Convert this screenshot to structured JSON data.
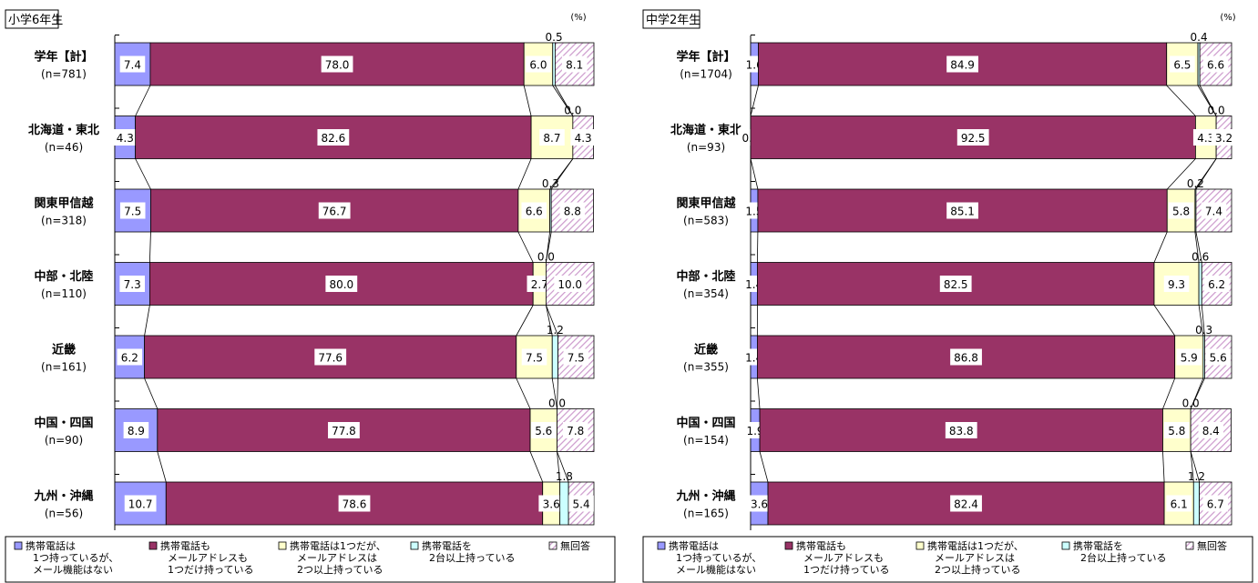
{
  "colors": {
    "s1": "#9999ff",
    "s2": "#993366",
    "s3": "#ffffcc",
    "s4": "#ccffff",
    "s5_hatch": "#cc99cc",
    "border": "#000000"
  },
  "chart_data": [
    {
      "type": "bar",
      "orientation": "horizontal",
      "stacked": "100%",
      "title": "小学6年生",
      "unit": "(%)",
      "categories": [
        "学年【計】",
        "北海道・東北",
        "関東甲信越",
        "中部・北陸",
        "近畿",
        "中国・四国",
        "九州・沖縄"
      ],
      "n_labels": [
        "(n=781)",
        "(n=46)",
        "(n=318)",
        "(n=110)",
        "(n=161)",
        "(n=90)",
        "(n=56)"
      ],
      "series": [
        {
          "name": "携帯電話は1つ持っているが、メール機能はない",
          "values": [
            7.4,
            4.3,
            7.5,
            7.3,
            6.2,
            8.9,
            10.7
          ],
          "labels": [
            "7.4",
            "4.3",
            "7.5",
            "7.3",
            "6.2",
            "8.9",
            "10.7"
          ]
        },
        {
          "name": "携帯電話もメールアドレスも1つだけ持っている",
          "values": [
            78.0,
            82.6,
            76.7,
            80.0,
            77.6,
            77.8,
            78.6
          ],
          "labels": [
            "78.0",
            "82.6",
            "76.7",
            "80.0",
            "77.6",
            "77.8",
            "78.6"
          ]
        },
        {
          "name": "携帯電話は1つだが、メールアドレスは2つ以上持っている",
          "values": [
            6.0,
            8.7,
            6.6,
            2.7,
            7.5,
            5.6,
            3.6
          ],
          "labels": [
            "6.0",
            "8.7",
            "6.6",
            "2.7",
            "7.5",
            "5.6",
            "3.6"
          ]
        },
        {
          "name": "携帯電話を2台以上持っている",
          "values": [
            0.5,
            0.0,
            0.3,
            0.0,
            1.2,
            0.0,
            1.8
          ],
          "labels": [
            "0.5",
            "0.0",
            "0.3",
            "0.0",
            "1.2",
            "0.0",
            "1.8"
          ]
        },
        {
          "name": "無回答",
          "values": [
            8.1,
            4.3,
            8.8,
            10.0,
            7.5,
            7.8,
            5.4
          ],
          "labels": [
            "8.1",
            "4.3",
            "8.8",
            "10.0",
            "7.5",
            "7.8",
            "5.4"
          ]
        }
      ],
      "legend": {
        "position": "bottom",
        "items": [
          {
            "lines": [
              "携帯電話は",
              "1つ持っているが、",
              "メール機能はない"
            ]
          },
          {
            "lines": [
              "携帯電話も",
              "メールアドレスも",
              "1つだけ持っている"
            ]
          },
          {
            "lines": [
              "携帯電話は1つだが、",
              "メールアドレスは",
              "2つ以上持っている"
            ]
          },
          {
            "lines": [
              "携帯電話を",
              "2台以上持っている"
            ]
          },
          {
            "lines": [
              "無回答"
            ]
          }
        ]
      }
    },
    {
      "type": "bar",
      "orientation": "horizontal",
      "stacked": "100%",
      "title": "中学2年生",
      "unit": "(%)",
      "categories": [
        "学年【計】",
        "北海道・東北",
        "関東甲信越",
        "中部・北陸",
        "近畿",
        "中国・四国",
        "九州・沖縄"
      ],
      "n_labels": [
        "(n=1704)",
        "(n=93)",
        "(n=583)",
        "(n=354)",
        "(n=355)",
        "(n=154)",
        "(n=165)"
      ],
      "series": [
        {
          "name": "携帯電話は1つ持っているが、メール機能はない",
          "values": [
            1.6,
            0.0,
            1.5,
            1.4,
            1.4,
            1.9,
            3.6
          ],
          "labels": [
            "1.6",
            "0.0",
            "1.5",
            "1.4",
            "1.4",
            "1.9",
            "3.6"
          ]
        },
        {
          "name": "携帯電話もメールアドレスも1つだけ持っている",
          "values": [
            84.9,
            92.5,
            85.1,
            82.5,
            86.8,
            83.8,
            82.4
          ],
          "labels": [
            "84.9",
            "92.5",
            "85.1",
            "82.5",
            "86.8",
            "83.8",
            "82.4"
          ]
        },
        {
          "name": "携帯電話は1つだが、メールアドレスは2つ以上持っている",
          "values": [
            6.5,
            4.3,
            5.8,
            9.3,
            5.9,
            5.8,
            6.1
          ],
          "labels": [
            "6.5",
            "4.3",
            "5.8",
            "9.3",
            "5.9",
            "5.8",
            "6.1"
          ]
        },
        {
          "name": "携帯電話を2台以上持っている",
          "values": [
            0.4,
            0.0,
            0.2,
            0.6,
            0.3,
            0.0,
            1.2
          ],
          "labels": [
            "0.4",
            "0.0",
            "0.2",
            "0.6",
            "0.3",
            "0.0",
            "1.2"
          ]
        },
        {
          "name": "無回答",
          "values": [
            6.6,
            3.2,
            7.4,
            6.2,
            5.6,
            8.4,
            6.7
          ],
          "labels": [
            "6.6",
            "3.2",
            "7.4",
            "6.2",
            "5.6",
            "8.4",
            "6.7"
          ]
        }
      ],
      "legend": {
        "position": "bottom",
        "items": [
          {
            "lines": [
              "携帯電話は",
              "1つ持っているが、",
              "メール機能はない"
            ]
          },
          {
            "lines": [
              "携帯電話も",
              "メールアドレスも",
              "1つだけ持っている"
            ]
          },
          {
            "lines": [
              "携帯電話は1つだが、",
              "メールアドレスは",
              "2つ以上持っている"
            ]
          },
          {
            "lines": [
              "携帯電話を",
              "2台以上持っている"
            ]
          },
          {
            "lines": [
              "無回答"
            ]
          }
        ]
      }
    }
  ]
}
